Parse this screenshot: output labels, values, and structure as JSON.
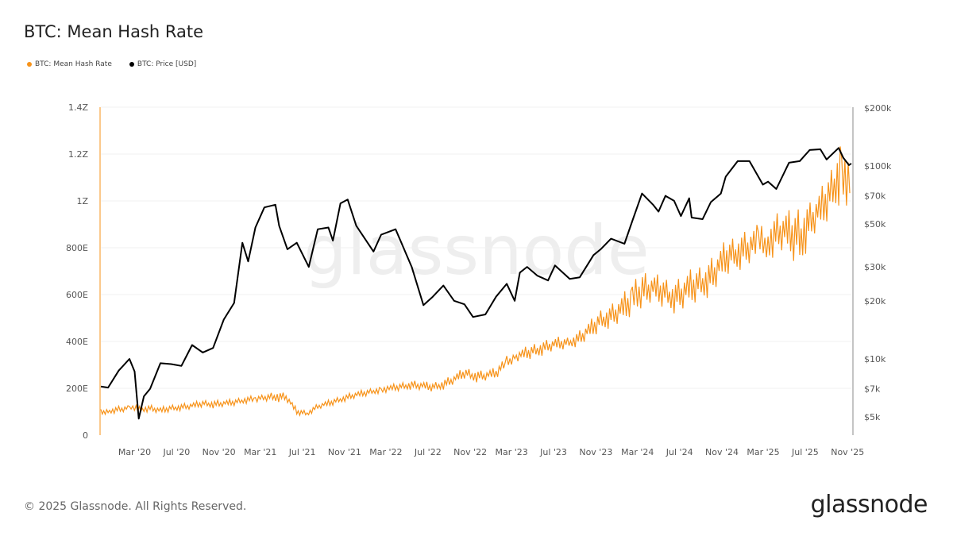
{
  "title": "BTC: Mean Hash Rate",
  "footer": "© 2025 Glassnode. All Rights Reserved.",
  "logo": "glassnode",
  "watermark": "glassnode",
  "colors": {
    "hash_rate": "#F7931A",
    "price": "#000000"
  },
  "chart_data": {
    "type": "line",
    "title": "BTC: Mean Hash Rate",
    "legend": {
      "placement": "top-left",
      "entries": [
        "BTC: Mean Hash Rate",
        "BTC: Price [USD]"
      ]
    },
    "x_range": [
      "2019-11-24",
      "2025-11-12"
    ],
    "x_ticks": [
      {
        "date": "2020-03-01",
        "label": "Mar '20"
      },
      {
        "date": "2020-07-01",
        "label": "Jul '20"
      },
      {
        "date": "2020-11-01",
        "label": "Nov '20"
      },
      {
        "date": "2021-03-01",
        "label": "Mar '21"
      },
      {
        "date": "2021-07-01",
        "label": "Jul '21"
      },
      {
        "date": "2021-11-01",
        "label": "Nov '21"
      },
      {
        "date": "2022-03-01",
        "label": "Mar '22"
      },
      {
        "date": "2022-07-01",
        "label": "Jul '22"
      },
      {
        "date": "2022-11-01",
        "label": "Nov '22"
      },
      {
        "date": "2023-03-01",
        "label": "Mar '23"
      },
      {
        "date": "2023-07-01",
        "label": "Jul '23"
      },
      {
        "date": "2023-11-01",
        "label": "Nov '23"
      },
      {
        "date": "2024-03-01",
        "label": "Mar '24"
      },
      {
        "date": "2024-07-01",
        "label": "Jul '24"
      },
      {
        "date": "2024-11-01",
        "label": "Nov '24"
      },
      {
        "date": "2025-03-01",
        "label": "Mar '25"
      },
      {
        "date": "2025-07-01",
        "label": "Jul '25"
      },
      {
        "date": "2025-11-01",
        "label": "Nov '25"
      }
    ],
    "y_left": {
      "scale": "linear",
      "range": [
        0,
        1.4e+21
      ],
      "ticks": [
        {
          "v": 0,
          "label": "0"
        },
        {
          "v": 2e+20,
          "label": "200E"
        },
        {
          "v": 4e+20,
          "label": "400E"
        },
        {
          "v": 6e+20,
          "label": "600E"
        },
        {
          "v": 8e+20,
          "label": "800E"
        },
        {
          "v": 1e+21,
          "label": "1Z"
        },
        {
          "v": 1.2e+21,
          "label": "1.2Z"
        },
        {
          "v": 1.4e+21,
          "label": "1.4Z"
        }
      ]
    },
    "y_right": {
      "scale": "log",
      "range": [
        3900,
        200000
      ],
      "ticks": [
        {
          "v": 5000,
          "label": "$5k"
        },
        {
          "v": 7000,
          "label": "$7k"
        },
        {
          "v": 10000,
          "label": "$10k"
        },
        {
          "v": 20000,
          "label": "$20k"
        },
        {
          "v": 30000,
          "label": "$30k"
        },
        {
          "v": 50000,
          "label": "$50k"
        },
        {
          "v": 70000,
          "label": "$70k"
        },
        {
          "v": 100000,
          "label": "$100k"
        },
        {
          "v": 200000,
          "label": "$200k"
        }
      ]
    },
    "grid": true,
    "series": [
      {
        "name": "BTC: Mean Hash Rate",
        "axis": "left",
        "unit": "EH/s",
        "points": [
          [
            "2019-11-24",
            85,
            110
          ],
          [
            "2019-12-15",
            90,
            115
          ],
          [
            "2020-01-15",
            95,
            125
          ],
          [
            "2020-02-15",
            100,
            130
          ],
          [
            "2020-03-15",
            95,
            125
          ],
          [
            "2020-04-15",
            100,
            130
          ],
          [
            "2020-05-15",
            90,
            120
          ],
          [
            "2020-06-15",
            100,
            130
          ],
          [
            "2020-07-15",
            105,
            135
          ],
          [
            "2020-08-15",
            110,
            140
          ],
          [
            "2020-09-15",
            120,
            150
          ],
          [
            "2020-10-15",
            115,
            150
          ],
          [
            "2020-11-15",
            120,
            150
          ],
          [
            "2020-12-15",
            125,
            155
          ],
          [
            "2021-01-15",
            135,
            165
          ],
          [
            "2021-02-15",
            140,
            170
          ],
          [
            "2021-03-15",
            145,
            175
          ],
          [
            "2021-04-15",
            140,
            190
          ],
          [
            "2021-05-15",
            145,
            180
          ],
          [
            "2021-06-15",
            85,
            115
          ],
          [
            "2021-07-15",
            80,
            105
          ],
          [
            "2021-08-15",
            110,
            135
          ],
          [
            "2021-09-15",
            120,
            150
          ],
          [
            "2021-10-15",
            135,
            165
          ],
          [
            "2021-11-15",
            150,
            180
          ],
          [
            "2021-12-15",
            160,
            190
          ],
          [
            "2022-01-15",
            170,
            200
          ],
          [
            "2022-02-15",
            180,
            210
          ],
          [
            "2022-03-15",
            185,
            215
          ],
          [
            "2022-04-15",
            190,
            225
          ],
          [
            "2022-05-15",
            195,
            235
          ],
          [
            "2022-06-15",
            190,
            230
          ],
          [
            "2022-07-15",
            185,
            225
          ],
          [
            "2022-08-15",
            195,
            240
          ],
          [
            "2022-09-15",
            215,
            260
          ],
          [
            "2022-10-15",
            240,
            290
          ],
          [
            "2022-11-15",
            225,
            280
          ],
          [
            "2022-12-15",
            230,
            275
          ],
          [
            "2023-01-15",
            240,
            290
          ],
          [
            "2023-02-15",
            285,
            340
          ],
          [
            "2023-03-15",
            310,
            360
          ],
          [
            "2023-04-15",
            320,
            380
          ],
          [
            "2023-05-15",
            330,
            400
          ],
          [
            "2023-06-15",
            350,
            410
          ],
          [
            "2023-07-15",
            360,
            420
          ],
          [
            "2023-08-15",
            370,
            420
          ],
          [
            "2023-09-15",
            380,
            450
          ],
          [
            "2023-10-15",
            410,
            490
          ],
          [
            "2023-11-15",
            440,
            540
          ],
          [
            "2023-12-15",
            460,
            560
          ],
          [
            "2024-01-15",
            470,
            600
          ],
          [
            "2024-02-15",
            510,
            650
          ],
          [
            "2024-03-15",
            540,
            700
          ],
          [
            "2024-04-15",
            560,
            690
          ],
          [
            "2024-05-15",
            540,
            680
          ],
          [
            "2024-06-15",
            520,
            660
          ],
          [
            "2024-07-15",
            530,
            690
          ],
          [
            "2024-08-15",
            560,
            720
          ],
          [
            "2024-09-15",
            580,
            740
          ],
          [
            "2024-10-15",
            620,
            780
          ],
          [
            "2024-11-15",
            680,
            840
          ],
          [
            "2024-12-15",
            700,
            860
          ],
          [
            "2025-01-15",
            720,
            880
          ],
          [
            "2025-02-15",
            730,
            900
          ],
          [
            "2025-03-15",
            740,
            920
          ],
          [
            "2025-04-15",
            780,
            960
          ],
          [
            "2025-05-15",
            760,
            960
          ],
          [
            "2025-06-15",
            700,
            990
          ],
          [
            "2025-07-15",
            830,
            1000
          ],
          [
            "2025-08-15",
            870,
            1050
          ],
          [
            "2025-09-15",
            930,
            1150
          ],
          [
            "2025-10-15",
            1000,
            1300
          ],
          [
            "2025-11-12",
            960,
            1150
          ]
        ]
      },
      {
        "name": "BTC: Price [USD]",
        "axis": "right",
        "points": [
          [
            "2019-11-24",
            7200
          ],
          [
            "2019-12-15",
            7100
          ],
          [
            "2020-01-15",
            8700
          ],
          [
            "2020-02-15",
            10000
          ],
          [
            "2020-03-01",
            8600
          ],
          [
            "2020-03-13",
            4900
          ],
          [
            "2020-03-28",
            6400
          ],
          [
            "2020-04-15",
            7000
          ],
          [
            "2020-05-15",
            9500
          ],
          [
            "2020-06-15",
            9400
          ],
          [
            "2020-07-15",
            9200
          ],
          [
            "2020-08-15",
            11800
          ],
          [
            "2020-09-15",
            10800
          ],
          [
            "2020-10-15",
            11400
          ],
          [
            "2020-11-15",
            16000
          ],
          [
            "2020-12-15",
            19500
          ],
          [
            "2021-01-08",
            40000
          ],
          [
            "2021-01-25",
            32000
          ],
          [
            "2021-02-15",
            48000
          ],
          [
            "2021-03-13",
            61000
          ],
          [
            "2021-04-14",
            63000
          ],
          [
            "2021-04-25",
            49000
          ],
          [
            "2021-05-19",
            37000
          ],
          [
            "2021-06-15",
            40000
          ],
          [
            "2021-07-20",
            30000
          ],
          [
            "2021-08-15",
            47000
          ],
          [
            "2021-09-15",
            48000
          ],
          [
            "2021-09-28",
            41000
          ],
          [
            "2021-10-20",
            64000
          ],
          [
            "2021-11-10",
            67000
          ],
          [
            "2021-12-05",
            49000
          ],
          [
            "2022-01-24",
            36000
          ],
          [
            "2022-02-15",
            44000
          ],
          [
            "2022-03-29",
            47000
          ],
          [
            "2022-04-15",
            40000
          ],
          [
            "2022-05-15",
            30000
          ],
          [
            "2022-06-18",
            19000
          ],
          [
            "2022-07-15",
            21000
          ],
          [
            "2022-08-15",
            24000
          ],
          [
            "2022-09-15",
            20000
          ],
          [
            "2022-10-15",
            19200
          ],
          [
            "2022-11-09",
            16500
          ],
          [
            "2022-12-15",
            17000
          ],
          [
            "2023-01-15",
            21000
          ],
          [
            "2023-02-15",
            24500
          ],
          [
            "2023-03-10",
            20000
          ],
          [
            "2023-03-25",
            28000
          ],
          [
            "2023-04-15",
            30000
          ],
          [
            "2023-05-15",
            27000
          ],
          [
            "2023-06-15",
            25500
          ],
          [
            "2023-07-05",
            30500
          ],
          [
            "2023-08-17",
            26000
          ],
          [
            "2023-09-15",
            26500
          ],
          [
            "2023-10-25",
            34500
          ],
          [
            "2023-11-15",
            37000
          ],
          [
            "2023-12-15",
            42000
          ],
          [
            "2024-01-23",
            39500
          ],
          [
            "2024-02-15",
            52000
          ],
          [
            "2024-03-14",
            72000
          ],
          [
            "2024-04-15",
            63000
          ],
          [
            "2024-05-01",
            58000
          ],
          [
            "2024-05-21",
            70000
          ],
          [
            "2024-06-15",
            66000
          ],
          [
            "2024-07-05",
            55000
          ],
          [
            "2024-07-29",
            68000
          ],
          [
            "2024-08-05",
            54000
          ],
          [
            "2024-09-06",
            53000
          ],
          [
            "2024-09-30",
            65000
          ],
          [
            "2024-10-29",
            72000
          ],
          [
            "2024-11-12",
            88000
          ],
          [
            "2024-12-17",
            106000
          ],
          [
            "2025-01-20",
            106000
          ],
          [
            "2025-02-28",
            80000
          ],
          [
            "2025-03-15",
            83000
          ],
          [
            "2025-04-08",
            76000
          ],
          [
            "2025-05-15",
            104000
          ],
          [
            "2025-06-15",
            106000
          ],
          [
            "2025-07-14",
            121000
          ],
          [
            "2025-08-14",
            122000
          ],
          [
            "2025-09-01",
            108000
          ],
          [
            "2025-10-06",
            124000
          ],
          [
            "2025-10-20",
            110000
          ],
          [
            "2025-11-05",
            101000
          ],
          [
            "2025-11-12",
            103000
          ]
        ]
      }
    ]
  }
}
